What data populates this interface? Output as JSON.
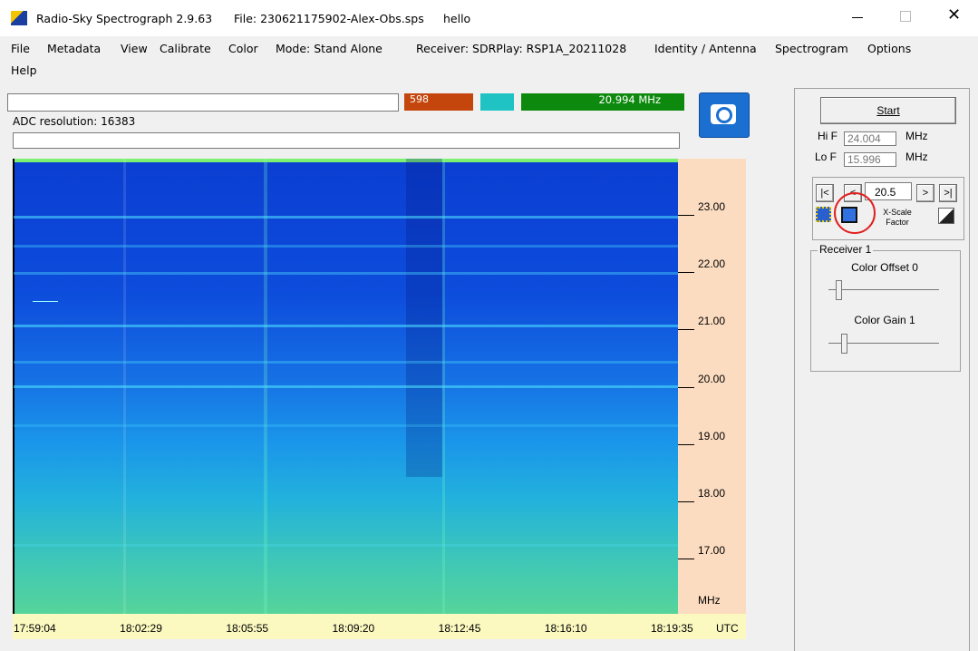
{
  "window": {
    "app": "Radio-Sky Spectrograph 2.9.63",
    "file": "File: 230621175902-Alex-Obs.sps",
    "note": "hello"
  },
  "menu": [
    "File",
    "Metadata",
    "View",
    "Calibrate",
    "Color",
    "Mode: Stand Alone",
    "Receiver: SDRPlay: RSP1A_20211028",
    "Identity / Antenna",
    "Spectrogram",
    "Options",
    "Help"
  ],
  "status": {
    "counter": "598",
    "frequency": "20.994 MHz",
    "adc": "ADC resolution:  16383"
  },
  "spectrogram": {
    "freq_ticks": [
      "23.00",
      "22.00",
      "21.00",
      "20.00",
      "19.00",
      "18.00",
      "17.00"
    ],
    "freq_unit": "MHz",
    "time_ticks": [
      "17:59:04",
      "18:02:29",
      "18:05:55",
      "18:09:20",
      "18:12:45",
      "18:16:10",
      "18:19:35"
    ],
    "time_unit": "UTC"
  },
  "controls": {
    "start": "Start",
    "hi_label": "Hi F",
    "hi_value": "24.004",
    "hi_unit": "MHz",
    "lo_label": "Lo F",
    "lo_value": "15.996",
    "lo_unit": "MHz",
    "nav": [
      "|<",
      "<",
      ">",
      ">|"
    ],
    "xscale_value": "20.5",
    "xscale_label": "X-Scale Factor",
    "group": "Receiver 1",
    "offset": "Color Offset 0",
    "gain": "Color Gain 1"
  }
}
